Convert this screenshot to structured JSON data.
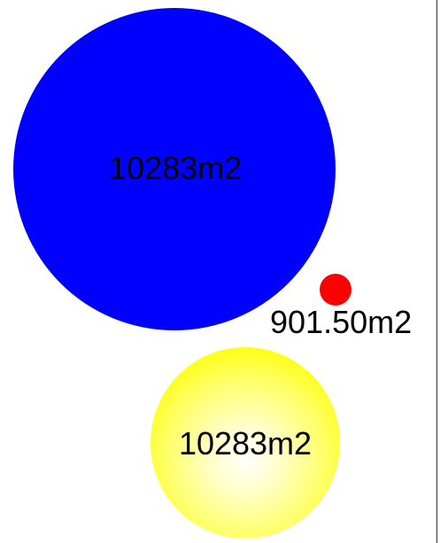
{
  "shapes": {
    "blue_circle": {
      "label": "10283m2",
      "color": "#0000ff"
    },
    "red_circle": {
      "label": "901.50m2",
      "color": "#ff0000"
    },
    "yellow_circle": {
      "label": "10283m2",
      "color": "#ffff00"
    }
  }
}
